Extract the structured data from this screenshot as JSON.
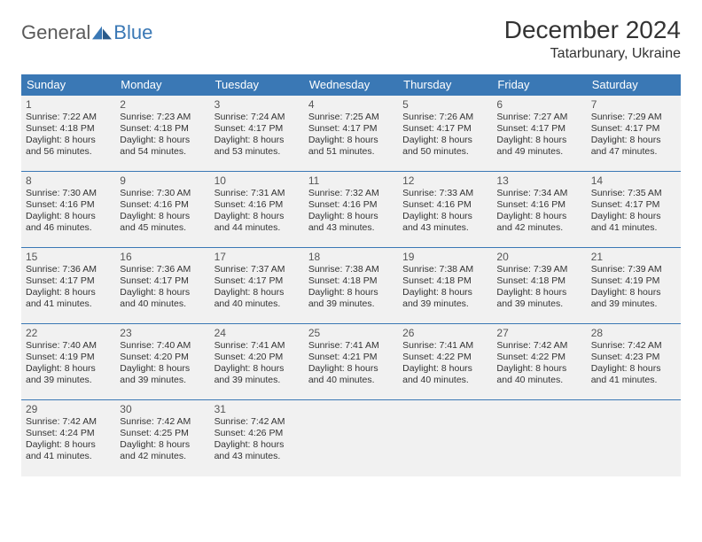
{
  "brand": {
    "general": "General",
    "blue": "Blue"
  },
  "title": "December 2024",
  "location": "Tatarbunary, Ukraine",
  "colors": {
    "header_bg": "#3a78b5",
    "header_text": "#ffffff",
    "cell_bg": "#f1f1f1",
    "cell_border": "#3a78b5",
    "page_bg": "#ffffff",
    "text": "#333333",
    "logo_gray": "#5a5a5a",
    "logo_blue": "#3a78b5"
  },
  "weekdays": [
    "Sunday",
    "Monday",
    "Tuesday",
    "Wednesday",
    "Thursday",
    "Friday",
    "Saturday"
  ],
  "weeks": [
    [
      {
        "day": "1",
        "sunrise": "Sunrise: 7:22 AM",
        "sunset": "Sunset: 4:18 PM",
        "daylight1": "Daylight: 8 hours",
        "daylight2": "and 56 minutes."
      },
      {
        "day": "2",
        "sunrise": "Sunrise: 7:23 AM",
        "sunset": "Sunset: 4:18 PM",
        "daylight1": "Daylight: 8 hours",
        "daylight2": "and 54 minutes."
      },
      {
        "day": "3",
        "sunrise": "Sunrise: 7:24 AM",
        "sunset": "Sunset: 4:17 PM",
        "daylight1": "Daylight: 8 hours",
        "daylight2": "and 53 minutes."
      },
      {
        "day": "4",
        "sunrise": "Sunrise: 7:25 AM",
        "sunset": "Sunset: 4:17 PM",
        "daylight1": "Daylight: 8 hours",
        "daylight2": "and 51 minutes."
      },
      {
        "day": "5",
        "sunrise": "Sunrise: 7:26 AM",
        "sunset": "Sunset: 4:17 PM",
        "daylight1": "Daylight: 8 hours",
        "daylight2": "and 50 minutes."
      },
      {
        "day": "6",
        "sunrise": "Sunrise: 7:27 AM",
        "sunset": "Sunset: 4:17 PM",
        "daylight1": "Daylight: 8 hours",
        "daylight2": "and 49 minutes."
      },
      {
        "day": "7",
        "sunrise": "Sunrise: 7:29 AM",
        "sunset": "Sunset: 4:17 PM",
        "daylight1": "Daylight: 8 hours",
        "daylight2": "and 47 minutes."
      }
    ],
    [
      {
        "day": "8",
        "sunrise": "Sunrise: 7:30 AM",
        "sunset": "Sunset: 4:16 PM",
        "daylight1": "Daylight: 8 hours",
        "daylight2": "and 46 minutes."
      },
      {
        "day": "9",
        "sunrise": "Sunrise: 7:30 AM",
        "sunset": "Sunset: 4:16 PM",
        "daylight1": "Daylight: 8 hours",
        "daylight2": "and 45 minutes."
      },
      {
        "day": "10",
        "sunrise": "Sunrise: 7:31 AM",
        "sunset": "Sunset: 4:16 PM",
        "daylight1": "Daylight: 8 hours",
        "daylight2": "and 44 minutes."
      },
      {
        "day": "11",
        "sunrise": "Sunrise: 7:32 AM",
        "sunset": "Sunset: 4:16 PM",
        "daylight1": "Daylight: 8 hours",
        "daylight2": "and 43 minutes."
      },
      {
        "day": "12",
        "sunrise": "Sunrise: 7:33 AM",
        "sunset": "Sunset: 4:16 PM",
        "daylight1": "Daylight: 8 hours",
        "daylight2": "and 43 minutes."
      },
      {
        "day": "13",
        "sunrise": "Sunrise: 7:34 AM",
        "sunset": "Sunset: 4:16 PM",
        "daylight1": "Daylight: 8 hours",
        "daylight2": "and 42 minutes."
      },
      {
        "day": "14",
        "sunrise": "Sunrise: 7:35 AM",
        "sunset": "Sunset: 4:17 PM",
        "daylight1": "Daylight: 8 hours",
        "daylight2": "and 41 minutes."
      }
    ],
    [
      {
        "day": "15",
        "sunrise": "Sunrise: 7:36 AM",
        "sunset": "Sunset: 4:17 PM",
        "daylight1": "Daylight: 8 hours",
        "daylight2": "and 41 minutes."
      },
      {
        "day": "16",
        "sunrise": "Sunrise: 7:36 AM",
        "sunset": "Sunset: 4:17 PM",
        "daylight1": "Daylight: 8 hours",
        "daylight2": "and 40 minutes."
      },
      {
        "day": "17",
        "sunrise": "Sunrise: 7:37 AM",
        "sunset": "Sunset: 4:17 PM",
        "daylight1": "Daylight: 8 hours",
        "daylight2": "and 40 minutes."
      },
      {
        "day": "18",
        "sunrise": "Sunrise: 7:38 AM",
        "sunset": "Sunset: 4:18 PM",
        "daylight1": "Daylight: 8 hours",
        "daylight2": "and 39 minutes."
      },
      {
        "day": "19",
        "sunrise": "Sunrise: 7:38 AM",
        "sunset": "Sunset: 4:18 PM",
        "daylight1": "Daylight: 8 hours",
        "daylight2": "and 39 minutes."
      },
      {
        "day": "20",
        "sunrise": "Sunrise: 7:39 AM",
        "sunset": "Sunset: 4:18 PM",
        "daylight1": "Daylight: 8 hours",
        "daylight2": "and 39 minutes."
      },
      {
        "day": "21",
        "sunrise": "Sunrise: 7:39 AM",
        "sunset": "Sunset: 4:19 PM",
        "daylight1": "Daylight: 8 hours",
        "daylight2": "and 39 minutes."
      }
    ],
    [
      {
        "day": "22",
        "sunrise": "Sunrise: 7:40 AM",
        "sunset": "Sunset: 4:19 PM",
        "daylight1": "Daylight: 8 hours",
        "daylight2": "and 39 minutes."
      },
      {
        "day": "23",
        "sunrise": "Sunrise: 7:40 AM",
        "sunset": "Sunset: 4:20 PM",
        "daylight1": "Daylight: 8 hours",
        "daylight2": "and 39 minutes."
      },
      {
        "day": "24",
        "sunrise": "Sunrise: 7:41 AM",
        "sunset": "Sunset: 4:20 PM",
        "daylight1": "Daylight: 8 hours",
        "daylight2": "and 39 minutes."
      },
      {
        "day": "25",
        "sunrise": "Sunrise: 7:41 AM",
        "sunset": "Sunset: 4:21 PM",
        "daylight1": "Daylight: 8 hours",
        "daylight2": "and 40 minutes."
      },
      {
        "day": "26",
        "sunrise": "Sunrise: 7:41 AM",
        "sunset": "Sunset: 4:22 PM",
        "daylight1": "Daylight: 8 hours",
        "daylight2": "and 40 minutes."
      },
      {
        "day": "27",
        "sunrise": "Sunrise: 7:42 AM",
        "sunset": "Sunset: 4:22 PM",
        "daylight1": "Daylight: 8 hours",
        "daylight2": "and 40 minutes."
      },
      {
        "day": "28",
        "sunrise": "Sunrise: 7:42 AM",
        "sunset": "Sunset: 4:23 PM",
        "daylight1": "Daylight: 8 hours",
        "daylight2": "and 41 minutes."
      }
    ],
    [
      {
        "day": "29",
        "sunrise": "Sunrise: 7:42 AM",
        "sunset": "Sunset: 4:24 PM",
        "daylight1": "Daylight: 8 hours",
        "daylight2": "and 41 minutes."
      },
      {
        "day": "30",
        "sunrise": "Sunrise: 7:42 AM",
        "sunset": "Sunset: 4:25 PM",
        "daylight1": "Daylight: 8 hours",
        "daylight2": "and 42 minutes."
      },
      {
        "day": "31",
        "sunrise": "Sunrise: 7:42 AM",
        "sunset": "Sunset: 4:26 PM",
        "daylight1": "Daylight: 8 hours",
        "daylight2": "and 43 minutes."
      },
      null,
      null,
      null,
      null
    ]
  ]
}
